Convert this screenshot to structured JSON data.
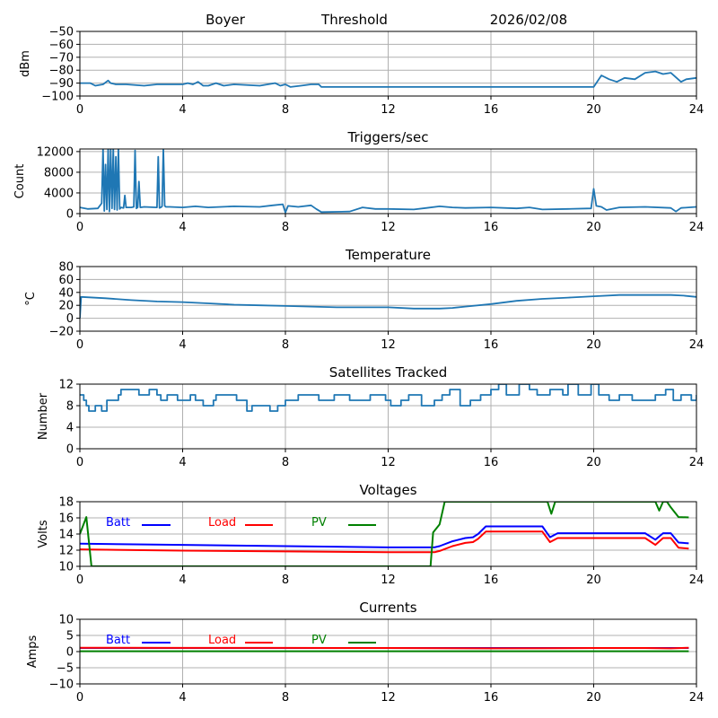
{
  "header": {
    "station": "Boyer",
    "mode": "Threshold",
    "date": "2026/02/08"
  },
  "colors": {
    "series_default": "#1f77b4",
    "batt": "#0000ff",
    "load": "#ff0000",
    "pv": "#008000",
    "grid": "#b0b0b0"
  },
  "chart_data": [
    {
      "id": "rssi",
      "type": "line",
      "title": "",
      "xlabel": "",
      "ylabel": "dBm",
      "xlim": [
        0,
        24
      ],
      "ylim": [
        -100,
        -50
      ],
      "xticks": [
        0,
        4,
        8,
        12,
        16,
        20,
        24
      ],
      "yticks": [
        -100,
        -90,
        -80,
        -70,
        -60,
        -50
      ],
      "ytick_labels": [
        "−100",
        "−90",
        "−80",
        "−70",
        "−60",
        "−50"
      ],
      "grid": true,
      "series": [
        {
          "name": "rssi",
          "color": "#1f77b4",
          "x": [
            0,
            0.4,
            0.6,
            0.9,
            1.1,
            1.2,
            1.4,
            1.8,
            2.5,
            3.0,
            3.5,
            4.0,
            4.2,
            4.4,
            4.6,
            4.8,
            5.0,
            5.3,
            5.6,
            6.0,
            7.0,
            7.6,
            7.8,
            8.0,
            8.2,
            8.6,
            9.0,
            9.3,
            9.4,
            12.0,
            13.0,
            14.0,
            15.0,
            16.0,
            19.9,
            20.0,
            20.3,
            20.6,
            20.9,
            21.2,
            21.6,
            22.0,
            22.4,
            22.7,
            23.0,
            23.4,
            23.6,
            24.0
          ],
          "y": [
            -90,
            -90,
            -92,
            -91,
            -88,
            -90,
            -91,
            -91,
            -92,
            -91,
            -91,
            -91,
            -90,
            -91,
            -89,
            -92,
            -92,
            -90,
            -92,
            -91,
            -92,
            -90,
            -92,
            -91,
            -93,
            -92,
            -91,
            -91,
            -93,
            -93,
            -93,
            -93,
            -93,
            -93,
            -93,
            -93,
            -84,
            -87,
            -89,
            -86,
            -87,
            -82,
            -81,
            -83,
            -82,
            -89,
            -87,
            -86
          ]
        }
      ]
    },
    {
      "id": "triggers",
      "type": "line",
      "title": "Triggers/sec",
      "xlabel": "",
      "ylabel": "Count",
      "xlim": [
        0,
        24
      ],
      "ylim": [
        0,
        12500
      ],
      "xticks": [
        0,
        4,
        8,
        12,
        16,
        20,
        24
      ],
      "yticks": [
        0,
        4000,
        8000,
        12000
      ],
      "ytick_labels": [
        "0",
        "4000",
        "8000",
        "12000"
      ],
      "grid": true,
      "series": [
        {
          "name": "triggers",
          "color": "#1f77b4",
          "x": [
            0,
            0.3,
            0.7,
            0.85,
            0.9,
            0.95,
            1.0,
            1.05,
            1.1,
            1.15,
            1.2,
            1.25,
            1.3,
            1.35,
            1.4,
            1.45,
            1.5,
            1.55,
            1.6,
            1.7,
            1.75,
            1.8,
            2.0,
            2.1,
            2.15,
            2.2,
            2.25,
            2.3,
            2.35,
            2.5,
            3.0,
            3.05,
            3.1,
            3.15,
            3.2,
            3.25,
            3.3,
            3.35,
            3.5,
            4.0,
            4.5,
            5.0,
            5.5,
            6.0,
            7.0,
            7.5,
            7.9,
            8.0,
            8.1,
            8.5,
            9.0,
            9.2,
            9.4,
            10.5,
            11.0,
            11.5,
            12.0,
            13.0,
            13.5,
            14.0,
            14.5,
            15.0,
            16.0,
            17.0,
            17.5,
            18.0,
            19.0,
            19.9,
            20.0,
            20.1,
            20.3,
            20.5,
            21.0,
            22.0,
            23.0,
            23.2,
            23.4,
            24.0
          ],
          "y": [
            1200,
            900,
            1000,
            2000,
            12500,
            500,
            9500,
            800,
            12500,
            400,
            12500,
            1000,
            12500,
            800,
            11000,
            700,
            12500,
            900,
            1200,
            1100,
            3500,
            1200,
            1200,
            1300,
            12200,
            1000,
            1200,
            6200,
            1200,
            1300,
            1200,
            11000,
            1100,
            1200,
            1400,
            12500,
            1500,
            1300,
            1300,
            1200,
            1400,
            1200,
            1300,
            1400,
            1300,
            1600,
            1800,
            200,
            1500,
            1300,
            1600,
            900,
            300,
            400,
            1200,
            900,
            900,
            800,
            1100,
            1400,
            1200,
            1100,
            1200,
            1000,
            1200,
            800,
            900,
            1000,
            4800,
            1500,
            1300,
            700,
            1200,
            1300,
            1100,
            400,
            1100,
            1300
          ]
        }
      ]
    },
    {
      "id": "temperature",
      "type": "line",
      "title": "Temperature",
      "xlabel": "",
      "ylabel": "°C",
      "xlim": [
        0,
        24
      ],
      "ylim": [
        -20,
        80
      ],
      "xticks": [
        0,
        4,
        8,
        12,
        16,
        20,
        24
      ],
      "yticks": [
        -20,
        0,
        20,
        40,
        60,
        80
      ],
      "ytick_labels": [
        "−20",
        "0",
        "20",
        "40",
        "60",
        "80"
      ],
      "grid": true,
      "series": [
        {
          "name": "temperature",
          "color": "#1f77b4",
          "x": [
            0,
            0.05,
            1,
            2,
            3,
            4,
            5,
            6,
            7,
            8,
            9,
            10,
            11,
            12,
            13,
            14,
            14.5,
            15,
            16,
            17,
            18,
            19,
            20,
            21,
            22,
            23,
            23.5,
            24
          ],
          "y": [
            0,
            33,
            31,
            28,
            26,
            25,
            23,
            21,
            20,
            19,
            18,
            17,
            17,
            17,
            15,
            15,
            16,
            18,
            22,
            27,
            30,
            32,
            34,
            36,
            36,
            36,
            35,
            33
          ]
        }
      ]
    },
    {
      "id": "satellites",
      "type": "line",
      "title": "Satellites Tracked",
      "xlabel": "",
      "ylabel": "Number",
      "xlim": [
        0,
        24
      ],
      "ylim": [
        0,
        12
      ],
      "xticks": [
        0,
        4,
        8,
        12,
        16,
        20,
        24
      ],
      "yticks": [
        0,
        4,
        8,
        12
      ],
      "ytick_labels": [
        "0",
        "4",
        "8",
        "12"
      ],
      "grid": true,
      "series": [
        {
          "name": "satellites",
          "color": "#1f77b4",
          "x": [
            0,
            0.15,
            0.25,
            0.35,
            0.55,
            0.6,
            0.85,
            1.05,
            1.5,
            1.6,
            2.0,
            2.3,
            2.7,
            3.0,
            3.15,
            3.4,
            3.8,
            4.3,
            4.5,
            4.8,
            5.2,
            5.3,
            6.1,
            6.5,
            6.7,
            7.4,
            7.7,
            8.0,
            8.5,
            9.3,
            9.9,
            10.5,
            11.3,
            11.9,
            12.1,
            12.5,
            12.8,
            13.3,
            13.8,
            14.1,
            14.4,
            14.8,
            15.2,
            15.6,
            16.0,
            16.3,
            16.6,
            17.1,
            17.5,
            17.8,
            18.3,
            18.8,
            19.0,
            19.4,
            19.9,
            20.2,
            20.6,
            21.0,
            21.5,
            22.0,
            22.4,
            22.8,
            23.1,
            23.4,
            23.8,
            24.0
          ],
          "y": [
            10,
            9,
            8,
            7,
            7,
            8,
            7,
            9,
            10,
            11,
            11,
            10,
            11,
            10,
            9,
            10,
            9,
            10,
            9,
            8,
            9,
            10,
            9,
            7,
            8,
            7,
            8,
            9,
            10,
            9,
            10,
            9,
            10,
            9,
            8,
            9,
            10,
            8,
            9,
            10,
            11,
            8,
            9,
            10,
            11,
            12,
            10,
            12,
            11,
            10,
            11,
            10,
            12,
            10,
            12,
            10,
            9,
            10,
            9,
            9,
            10,
            11,
            9,
            10,
            9,
            10
          ]
        }
      ]
    },
    {
      "id": "voltages",
      "type": "line",
      "title": "Voltages",
      "xlabel": "",
      "ylabel": "Volts",
      "xlim": [
        0,
        24
      ],
      "ylim": [
        10,
        18
      ],
      "xticks": [
        0,
        4,
        8,
        12,
        16,
        20,
        24
      ],
      "yticks": [
        10,
        12,
        14,
        16,
        18
      ],
      "ytick_labels": [
        "10",
        "12",
        "14",
        "16",
        "18"
      ],
      "grid": true,
      "legend": "inside-top-left",
      "series": [
        {
          "name": "Batt",
          "color": "#0000ff",
          "x": [
            0,
            4,
            8,
            12,
            13.8,
            14.0,
            14.5,
            15.0,
            15.3,
            15.5,
            15.8,
            17.0,
            18.0,
            18.3,
            18.6,
            20.0,
            22.0,
            22.4,
            22.7,
            23.0,
            23.3,
            23.7
          ],
          "y": [
            12.8,
            12.65,
            12.5,
            12.35,
            12.35,
            12.5,
            13.1,
            13.5,
            13.6,
            14.0,
            14.95,
            14.95,
            14.95,
            13.6,
            14.1,
            14.1,
            14.1,
            13.3,
            14.1,
            14.1,
            12.95,
            12.85
          ]
        },
        {
          "name": "Load",
          "color": "#ff0000",
          "x": [
            0,
            4,
            8,
            12,
            13.8,
            14.0,
            14.5,
            15.0,
            15.3,
            15.5,
            15.8,
            17.0,
            18.0,
            18.3,
            18.6,
            20.0,
            22.0,
            22.4,
            22.7,
            23.0,
            23.3,
            23.7
          ],
          "y": [
            12.1,
            11.95,
            11.85,
            11.75,
            11.75,
            11.9,
            12.5,
            12.9,
            13.0,
            13.4,
            14.3,
            14.3,
            14.3,
            13.0,
            13.5,
            13.5,
            13.5,
            12.65,
            13.5,
            13.5,
            12.3,
            12.2
          ]
        },
        {
          "name": "PV",
          "color": "#008000",
          "x": [
            0,
            0.25,
            0.45,
            13.65,
            13.75,
            14.0,
            14.2,
            14.35,
            18.2,
            18.35,
            18.5,
            22.4,
            22.55,
            22.7,
            22.85,
            23.0,
            23.3,
            23.7
          ],
          "y": [
            14.0,
            16.1,
            10.0,
            10.0,
            14.2,
            15.2,
            18.0,
            18.0,
            18.0,
            16.5,
            18.0,
            18.0,
            16.9,
            18.0,
            18.0,
            17.3,
            16.1,
            16.05
          ]
        }
      ]
    },
    {
      "id": "currents",
      "type": "line",
      "title": "Currents",
      "xlabel": "",
      "ylabel": "Amps",
      "xlim": [
        0,
        24
      ],
      "ylim": [
        -10,
        10
      ],
      "xticks": [
        0,
        4,
        8,
        12,
        16,
        20,
        24
      ],
      "yticks": [
        -10,
        -5,
        0,
        5,
        10
      ],
      "ytick_labels": [
        "−10",
        "−5",
        "0",
        "5",
        "10"
      ],
      "grid": true,
      "legend": "inside-top-left",
      "series": [
        {
          "name": "Batt",
          "color": "#0000ff",
          "x": [
            0,
            23.7
          ],
          "y": [
            1.1,
            1.1
          ]
        },
        {
          "name": "Load",
          "color": "#ff0000",
          "x": [
            0,
            4,
            8,
            12,
            16,
            18,
            20,
            22,
            23,
            23.7
          ],
          "y": [
            1.2,
            1.15,
            1.15,
            1.1,
            1.0,
            1.05,
            1.1,
            1.1,
            1.0,
            1.2
          ]
        },
        {
          "name": "PV",
          "color": "#008000",
          "x": [
            0,
            23.7
          ],
          "y": [
            0.1,
            0.1
          ]
        }
      ]
    }
  ]
}
